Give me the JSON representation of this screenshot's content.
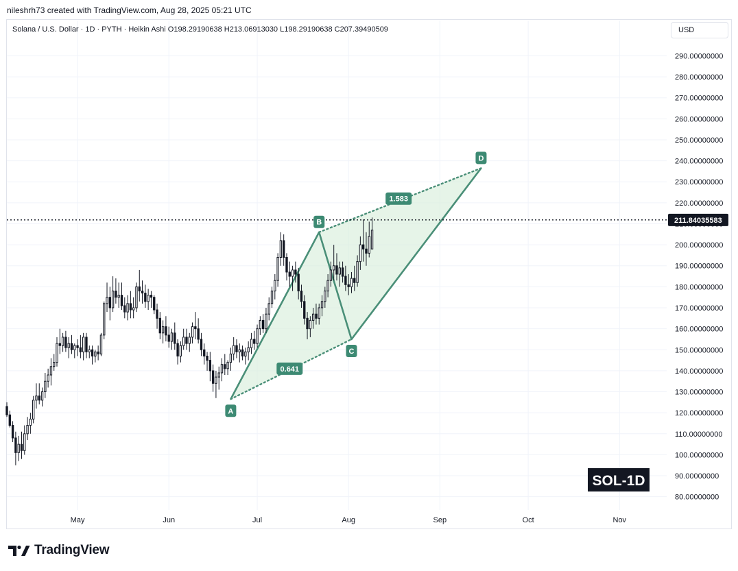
{
  "header": {
    "attribution": "nileshrh73 created with TradingView.com, Aug 28, 2025 05:21 UTC",
    "legend": "Solana / U.S. Dollar · 1D · PYTH · Heikin Ashi  O198.29190638  H213.06913030  L198.29190638  C207.39490509",
    "currency": "USD"
  },
  "footer": {
    "brand": "TradingView"
  },
  "colors": {
    "pattern": "#4a8f78",
    "fill": "#d8eedb",
    "candle": "#131722",
    "label_bg": "#3d8a73"
  },
  "chart_data": {
    "type": "candlestick",
    "symbol": "SOL-1D",
    "last_price": 211.84035583,
    "last_price_label": "211.84035583",
    "ylim": [
      75,
      297
    ],
    "y_ticks": [
      80,
      90,
      100,
      110,
      120,
      130,
      140,
      150,
      160,
      170,
      180,
      190,
      200,
      210,
      220,
      230,
      240,
      250,
      260,
      270,
      280,
      290
    ],
    "y_tick_labels": [
      "80.00000000",
      "90.00000000",
      "100.00000000",
      "110.00000000",
      "120.00000000",
      "130.00000000",
      "140.00000000",
      "150.00000000",
      "160.00000000",
      "170.00000000",
      "180.00000000",
      "190.00000000",
      "200.00000000",
      "210.00000000",
      "220.00000000",
      "230.00000000",
      "240.00000000",
      "250.00000000",
      "260.00000000",
      "270.00000000",
      "280.00000000",
      "290.00000000"
    ],
    "xlim": [
      "2025-04-07",
      "2025-11-17"
    ],
    "x_ticks": [
      {
        "date": "2025-05-01",
        "label": "May"
      },
      {
        "date": "2025-06-01",
        "label": "Jun"
      },
      {
        "date": "2025-07-01",
        "label": "Jul"
      },
      {
        "date": "2025-08-01",
        "label": "Aug"
      },
      {
        "date": "2025-09-01",
        "label": "Sep"
      },
      {
        "date": "2025-10-01",
        "label": "Oct"
      },
      {
        "date": "2025-11-01",
        "label": "Nov"
      }
    ],
    "harmonic_pattern": {
      "points": [
        {
          "label": "A",
          "date": "2025-06-22",
          "price": 126.5
        },
        {
          "label": "B",
          "date": "2025-07-22",
          "price": 206
        },
        {
          "label": "C",
          "date": "2025-08-02",
          "price": 155
        },
        {
          "label": "D",
          "date": "2025-09-15",
          "price": 236.5
        }
      ],
      "ratios": [
        {
          "label": "0.641",
          "date": "2025-07-12",
          "price": 141
        },
        {
          "label": "1.583",
          "date": "2025-08-18",
          "price": 222
        }
      ]
    },
    "candles_start": "2025-04-07",
    "candles": [
      [
        123,
        125,
        118,
        119
      ],
      [
        119,
        121,
        113,
        114
      ],
      [
        114,
        116,
        106,
        108
      ],
      [
        108,
        111,
        95,
        101
      ],
      [
        101,
        109,
        97,
        105
      ],
      [
        105,
        111,
        98,
        102
      ],
      [
        102,
        114,
        100,
        110
      ],
      [
        110,
        118,
        107,
        114
      ],
      [
        114,
        120,
        110,
        117
      ],
      [
        117,
        128,
        115,
        126
      ],
      [
        126,
        134,
        122,
        128
      ],
      [
        128,
        134,
        124,
        126
      ],
      [
        126,
        132,
        123,
        130
      ],
      [
        130,
        139,
        127,
        135
      ],
      [
        135,
        141,
        132,
        138
      ],
      [
        138,
        146,
        133,
        142
      ],
      [
        142,
        148,
        140,
        144
      ],
      [
        144,
        156,
        142,
        153
      ],
      [
        153,
        160,
        148,
        152
      ],
      [
        152,
        158,
        149,
        156
      ],
      [
        156,
        159,
        149,
        151
      ],
      [
        151,
        156,
        146,
        153
      ],
      [
        153,
        157,
        148,
        150
      ],
      [
        150,
        153,
        146,
        152
      ],
      [
        152,
        155,
        147,
        151
      ],
      [
        151,
        157,
        146,
        149
      ],
      [
        149,
        158,
        145,
        156
      ],
      [
        156,
        158,
        146,
        149
      ],
      [
        149,
        152,
        146,
        150
      ],
      [
        150,
        152,
        143,
        147
      ],
      [
        147,
        150,
        144,
        149
      ],
      [
        149,
        152,
        145,
        148
      ],
      [
        148,
        158,
        147,
        157
      ],
      [
        157,
        173,
        155,
        172
      ],
      [
        172,
        182,
        168,
        175
      ],
      [
        175,
        180,
        164,
        170
      ],
      [
        170,
        185,
        168,
        178
      ],
      [
        178,
        184,
        172,
        175
      ],
      [
        175,
        182,
        170,
        176
      ],
      [
        176,
        182,
        169,
        171
      ],
      [
        171,
        175,
        165,
        168
      ],
      [
        168,
        176,
        164,
        172
      ],
      [
        172,
        178,
        165,
        169
      ],
      [
        169,
        175,
        165,
        170
      ],
      [
        170,
        182,
        168,
        180
      ],
      [
        180,
        188,
        173,
        178
      ],
      [
        178,
        183,
        172,
        177
      ],
      [
        177,
        181,
        170,
        173
      ],
      [
        173,
        179,
        169,
        176
      ],
      [
        176,
        178,
        170,
        175
      ],
      [
        175,
        176,
        167,
        169
      ],
      [
        169,
        172,
        160,
        165
      ],
      [
        165,
        168,
        155,
        158
      ],
      [
        158,
        164,
        153,
        161
      ],
      [
        161,
        166,
        154,
        157
      ],
      [
        157,
        161,
        151,
        154
      ],
      [
        154,
        160,
        150,
        158
      ],
      [
        158,
        163,
        150,
        153
      ],
      [
        153,
        155,
        143,
        147
      ],
      [
        147,
        154,
        144,
        152
      ],
      [
        152,
        160,
        150,
        156
      ],
      [
        156,
        160,
        150,
        153
      ],
      [
        153,
        158,
        149,
        156
      ],
      [
        156,
        163,
        153,
        161
      ],
      [
        161,
        168,
        155,
        160
      ],
      [
        160,
        165,
        153,
        155
      ],
      [
        155,
        158,
        147,
        150
      ],
      [
        150,
        153,
        143,
        147
      ],
      [
        147,
        149,
        140,
        145
      ],
      [
        145,
        149,
        135,
        140
      ],
      [
        140,
        143,
        130,
        134
      ],
      [
        134,
        140,
        127,
        137
      ],
      [
        137,
        142,
        131,
        139
      ],
      [
        139,
        146,
        135,
        143
      ],
      [
        143,
        148,
        138,
        141
      ],
      [
        141,
        145,
        138,
        144
      ],
      [
        144,
        151,
        140,
        148
      ],
      [
        148,
        156,
        145,
        152
      ],
      [
        152,
        155,
        146,
        149
      ],
      [
        149,
        153,
        144,
        150
      ],
      [
        150,
        152,
        145,
        147
      ],
      [
        147,
        151,
        143,
        149
      ],
      [
        149,
        154,
        145,
        151
      ],
      [
        151,
        158,
        148,
        155
      ],
      [
        155,
        159,
        150,
        153
      ],
      [
        153,
        162,
        151,
        160
      ],
      [
        160,
        166,
        157,
        164
      ],
      [
        164,
        167,
        158,
        160
      ],
      [
        160,
        170,
        158,
        167
      ],
      [
        167,
        175,
        164,
        172
      ],
      [
        172,
        180,
        170,
        178
      ],
      [
        178,
        186,
        174,
        183
      ],
      [
        183,
        196,
        180,
        194
      ],
      [
        194,
        206,
        190,
        202
      ],
      [
        202,
        205,
        190,
        194
      ],
      [
        194,
        196,
        183,
        187
      ],
      [
        187,
        192,
        180,
        185
      ],
      [
        185,
        190,
        178,
        188
      ],
      [
        188,
        192,
        182,
        186
      ],
      [
        186,
        189,
        174,
        178
      ],
      [
        178,
        181,
        170,
        173
      ],
      [
        173,
        176,
        162,
        165
      ],
      [
        165,
        168,
        155,
        160
      ],
      [
        160,
        166,
        156,
        164
      ],
      [
        164,
        170,
        160,
        167
      ],
      [
        167,
        172,
        162,
        165
      ],
      [
        165,
        172,
        162,
        170
      ],
      [
        170,
        176,
        166,
        173
      ],
      [
        173,
        180,
        170,
        178
      ],
      [
        178,
        186,
        175,
        183
      ],
      [
        183,
        192,
        180,
        188
      ],
      [
        188,
        200,
        183,
        190
      ],
      [
        190,
        196,
        183,
        186
      ],
      [
        186,
        192,
        180,
        189
      ],
      [
        189,
        192,
        182,
        185
      ],
      [
        185,
        190,
        178,
        181
      ],
      [
        181,
        186,
        176,
        180
      ],
      [
        180,
        187,
        177,
        184
      ],
      [
        184,
        190,
        178,
        182
      ],
      [
        182,
        195,
        180,
        192
      ],
      [
        192,
        204,
        188,
        200
      ],
      [
        200,
        212,
        192,
        198
      ],
      [
        198,
        206,
        190,
        196
      ],
      [
        196,
        211,
        194,
        204
      ],
      [
        198,
        213,
        198,
        207
      ]
    ]
  }
}
